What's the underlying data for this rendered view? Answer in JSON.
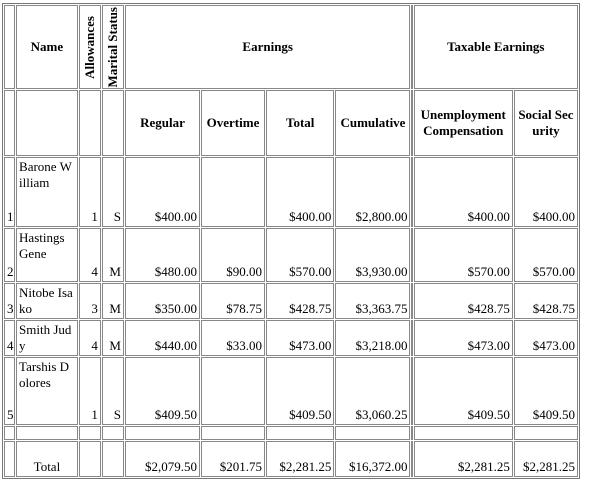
{
  "table": {
    "headers": {
      "name": "Name",
      "allowances": "Allowances",
      "marital_status": "Marital Status",
      "earnings": "Earnings",
      "taxable_earnings": "Taxable Earnings",
      "regular": "Regular",
      "overtime": "Overtime",
      "total": "Total",
      "cumulative": "Cumulative",
      "unemployment": "Unemployment Compensation",
      "social_security": "Social Security"
    },
    "rows": [
      [
        "1",
        "Barone William",
        "1",
        "S",
        "$400.00",
        "",
        "$400.00",
        "$2,800.00",
        "$400.00",
        "$400.00"
      ],
      [
        "2",
        "Hastings Gene",
        "4",
        "M",
        "$480.00",
        "$90.00",
        "$570.00",
        "$3,930.00",
        "$570.00",
        "$570.00"
      ],
      [
        "3",
        "Nitobe Isako",
        "3",
        "M",
        "$350.00",
        "$78.75",
        "$428.75",
        "$3,363.75",
        "$428.75",
        "$428.75"
      ],
      [
        "4",
        "Smith Judy",
        "4",
        "M",
        "$440.00",
        "$33.00",
        "$473.00",
        "$3,218.00",
        "$473.00",
        "$473.00"
      ],
      [
        "5",
        "Tarshis Dolores",
        "1",
        "S",
        "$409.50",
        "",
        "$409.50",
        "$3,060.25",
        "$409.50",
        "$409.50"
      ]
    ],
    "total_row": [
      "Total",
      "$2,079.50",
      "$201.75",
      "$2,281.25",
      "$16,372.00",
      "$2,281.25",
      "$2,281.25"
    ]
  }
}
